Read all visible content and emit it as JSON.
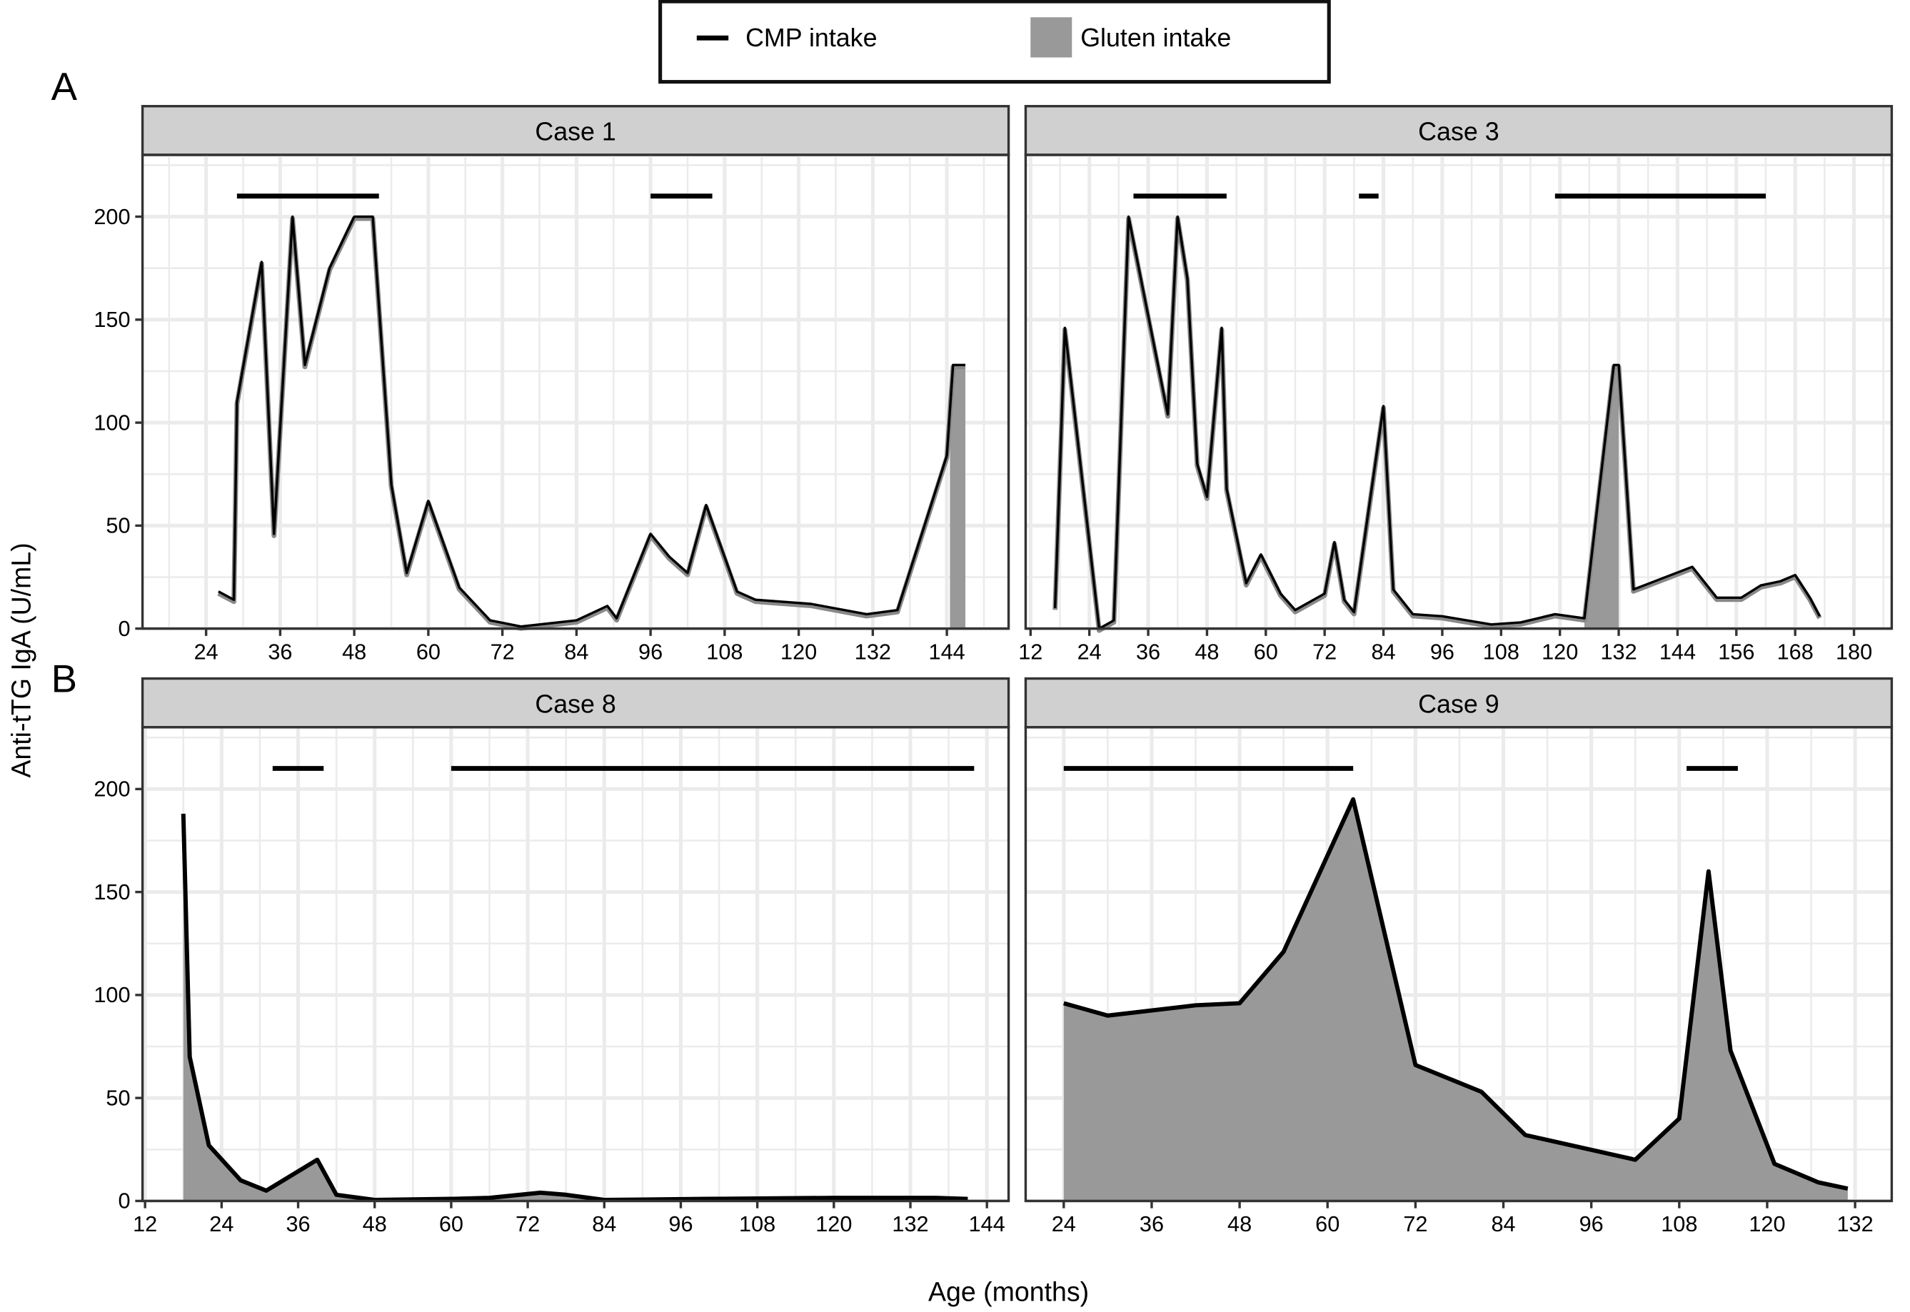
{
  "legend": {
    "position": "top-center",
    "items": [
      {
        "label": "CMP intake",
        "kind": "line",
        "color": "#000000"
      },
      {
        "label": "Gluten intake",
        "kind": "fill",
        "color": "#999999"
      }
    ]
  },
  "panel_labels": [
    "A",
    "B"
  ],
  "ylabel": "Anti-tTG IgA (U/mL)",
  "xlabel": "Age (months)",
  "colors": {
    "strip": "#d0d0d0",
    "grid": "#ebebeb",
    "line": "#000000",
    "line_shadow": "#888888",
    "gluten": "#999999"
  },
  "chart_data": [
    {
      "type": "line",
      "title": "Case 1",
      "grid": true,
      "xlim": [
        13.7,
        154
      ],
      "ylim": [
        0,
        230
      ],
      "xticks": [
        24,
        36,
        48,
        60,
        72,
        84,
        96,
        108,
        120,
        132,
        144
      ],
      "yticks": [
        0,
        50,
        100,
        150,
        200
      ],
      "x": [
        26,
        28.5,
        29,
        33,
        35,
        38,
        40,
        44,
        48,
        51,
        54,
        56.5,
        60,
        65,
        70,
        75,
        84,
        89,
        90.5,
        96,
        99,
        102,
        105,
        110,
        113,
        122,
        131,
        136,
        144,
        145,
        147
      ],
      "y": [
        18,
        14,
        110,
        178,
        46,
        200,
        128,
        175,
        200,
        200,
        70,
        27,
        62,
        20,
        4,
        1,
        4,
        11,
        5,
        46,
        35,
        27,
        60,
        18,
        14,
        12,
        7,
        9,
        84,
        128,
        128
      ],
      "gluten_ranges": [
        [
          144.5,
          147
        ]
      ],
      "cmp_ranges": [
        [
          29,
          52
        ],
        [
          96,
          106
        ]
      ]
    },
    {
      "type": "line",
      "title": "Case 3",
      "grid": true,
      "xlim": [
        11,
        187.7
      ],
      "ylim": [
        0,
        230
      ],
      "xticks": [
        12,
        24,
        36,
        48,
        60,
        72,
        84,
        96,
        108,
        120,
        132,
        144,
        156,
        168,
        180
      ],
      "yticks": [
        0,
        50,
        100,
        150,
        200
      ],
      "x": [
        17,
        19,
        26,
        29,
        32,
        40,
        42,
        44,
        46,
        48,
        51,
        52,
        56,
        59,
        63,
        66,
        72,
        74,
        76,
        78,
        84,
        86,
        90,
        96,
        106,
        112,
        119,
        125,
        131,
        132,
        135,
        147,
        152,
        157,
        161,
        165,
        168,
        171,
        173
      ],
      "y": [
        10,
        146,
        0,
        4,
        200,
        104,
        200,
        170,
        80,
        64,
        146,
        68,
        22,
        36,
        17,
        9,
        17,
        42,
        14,
        8,
        108,
        19,
        7,
        6,
        2,
        3,
        7,
        5,
        128,
        128,
        19,
        30,
        15,
        15,
        21,
        23,
        26,
        15,
        6
      ],
      "gluten_ranges": [
        [
          125,
          132
        ]
      ],
      "cmp_ranges": [
        [
          33,
          52
        ],
        [
          79,
          83
        ],
        [
          119,
          162
        ]
      ]
    },
    {
      "type": "area",
      "title": "Case 8",
      "grid": true,
      "xlim": [
        11.6,
        147.4
      ],
      "ylim": [
        0,
        230
      ],
      "xticks": [
        12,
        24,
        36,
        48,
        60,
        72,
        84,
        96,
        108,
        120,
        132,
        144
      ],
      "yticks": [
        0,
        50,
        100,
        150,
        200
      ],
      "x": [
        18,
        19,
        22,
        27,
        31,
        39,
        42,
        48,
        60,
        66,
        74,
        78,
        84,
        100,
        120,
        136,
        141
      ],
      "y": [
        188,
        70,
        27,
        10,
        5,
        20,
        3,
        0.5,
        1,
        1.5,
        4,
        3,
        0.5,
        1,
        1.5,
        1.5,
        1
      ],
      "gluten_ranges": [
        [
          18,
          141
        ]
      ],
      "cmp_ranges": [
        [
          32,
          40
        ],
        [
          60,
          142
        ]
      ]
    },
    {
      "type": "area",
      "title": "Case 9",
      "grid": true,
      "xlim": [
        18.8,
        137
      ],
      "ylim": [
        0,
        230
      ],
      "xticks": [
        24,
        36,
        48,
        60,
        72,
        84,
        96,
        108,
        120,
        132
      ],
      "yticks": [
        0,
        50,
        100,
        150,
        200
      ],
      "x": [
        24,
        30,
        42,
        48,
        54,
        63.5,
        72,
        81,
        87,
        102,
        108,
        112,
        115,
        121,
        127,
        131
      ],
      "y": [
        96,
        90,
        95,
        96,
        121,
        195,
        66,
        53,
        32,
        20,
        40,
        160,
        73,
        18,
        9,
        6
      ],
      "gluten_ranges": [
        [
          24,
          131
        ]
      ],
      "cmp_ranges": [
        [
          24,
          63.5
        ],
        [
          109,
          116
        ]
      ]
    }
  ]
}
